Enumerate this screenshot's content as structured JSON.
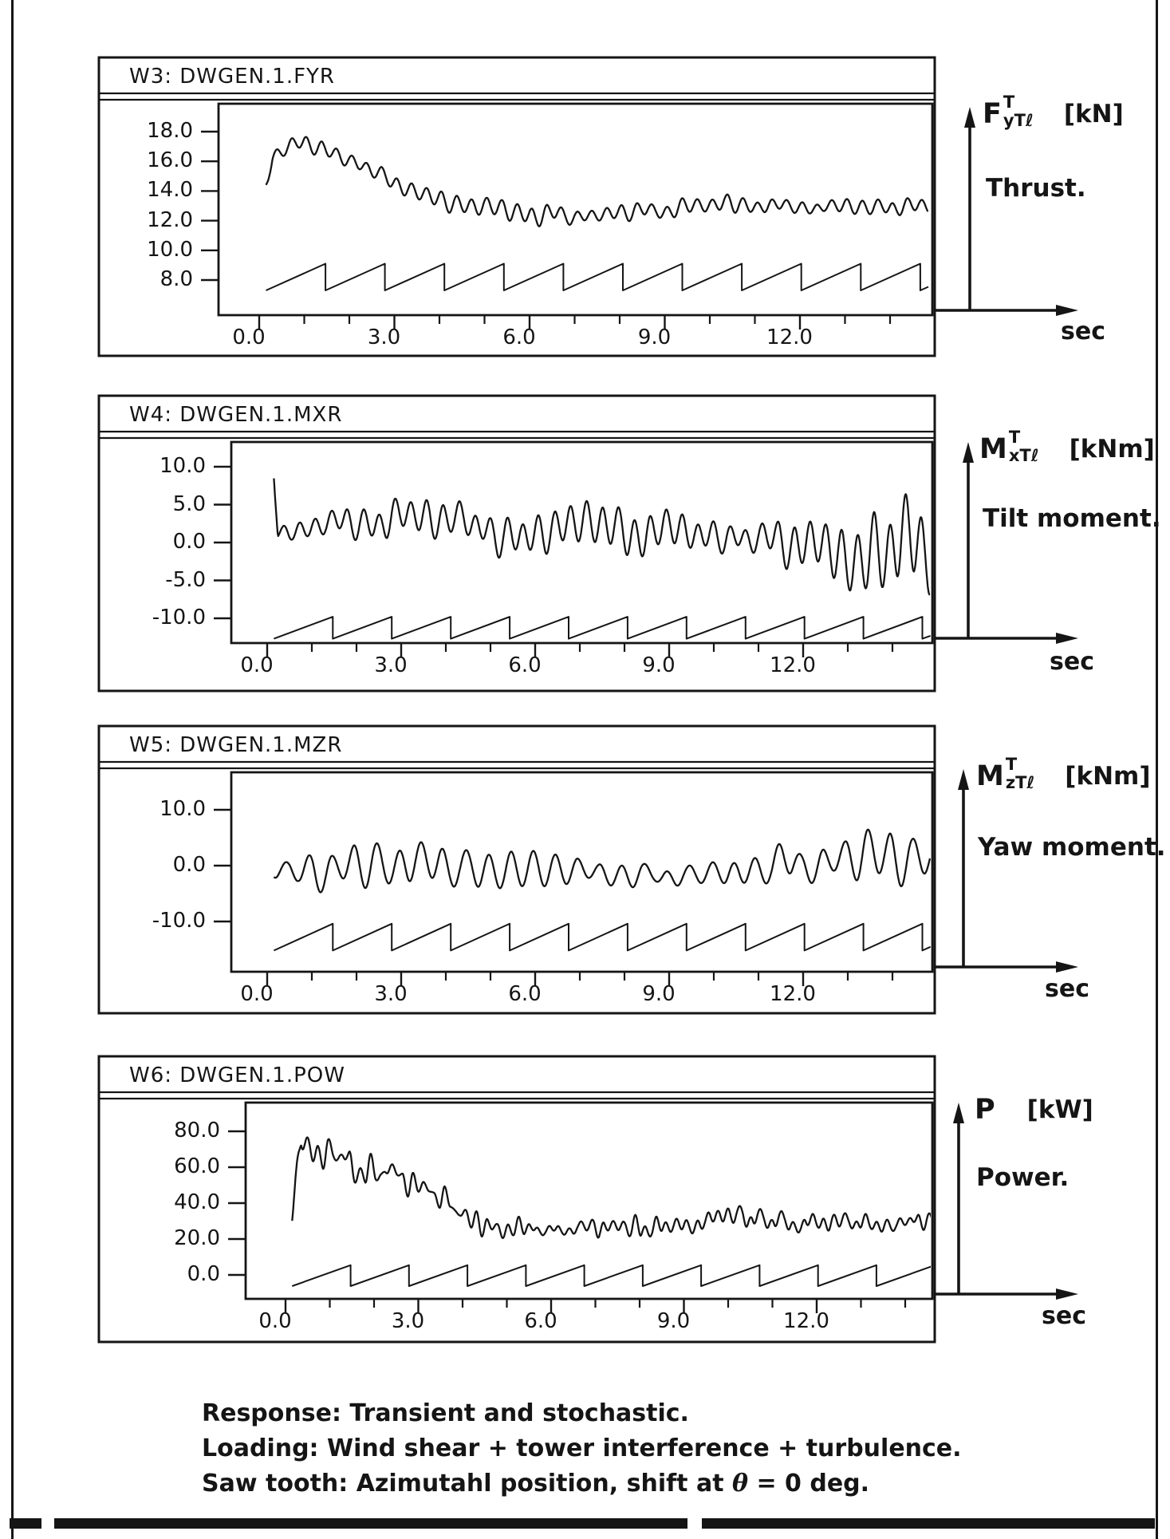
{
  "page": {
    "background": "#ffffff",
    "ink": "#151515"
  },
  "caption": {
    "line1": "Response: Transient and stochastic.",
    "line2": "Loading: Wind shear + tower interference + turbulence.",
    "line3_prefix": "Saw tooth: Azimutahl position, shift at ",
    "line3_theta": "θ",
    "line3_suffix": " = 0 deg."
  },
  "chart_data": [
    {
      "id": "W3",
      "type": "line",
      "title": "W3: DWGEN.1.FYR",
      "quantity": {
        "main": "F",
        "sup": "T",
        "sub": "yTℓ",
        "unit": "[kN]"
      },
      "description": "Thrust.",
      "x_axis": {
        "unit": "sec",
        "major_values": [
          0,
          3,
          6,
          9,
          12
        ],
        "major_labels": [
          "0.0",
          "3.0",
          "6.0",
          "9.0",
          "12.0"
        ],
        "minor_step": 1.0,
        "start": 0.0,
        "end": 14.85
      },
      "y_axis": {
        "values": [
          18,
          16,
          14,
          12,
          10,
          8
        ],
        "labels": [
          "18.0",
          "16.0",
          "14.0",
          "12.0",
          "10.0",
          "8.0"
        ]
      },
      "signal": {
        "name": "thrust-response",
        "t_start": 0.15,
        "freq_hz": 3.0,
        "sine_weight": 0.72,
        "noise_weight": 0.5,
        "noise_step": 0.2,
        "seed": 11,
        "phase": 0.6,
        "mean_keys": [
          [
            0.15,
            14.5
          ],
          [
            0.3,
            16.2
          ],
          [
            0.7,
            17.0
          ],
          [
            1.0,
            17.3
          ],
          [
            1.4,
            16.9
          ],
          [
            2.0,
            16.0
          ],
          [
            2.6,
            15.2
          ],
          [
            3.2,
            14.4
          ],
          [
            3.8,
            13.7
          ],
          [
            4.4,
            13.1
          ],
          [
            5.0,
            12.8
          ],
          [
            5.6,
            12.6
          ],
          [
            6.4,
            12.4
          ],
          [
            7.2,
            12.3
          ],
          [
            8.0,
            12.5
          ],
          [
            8.8,
            12.7
          ],
          [
            9.6,
            13.0
          ],
          [
            10.4,
            13.2
          ],
          [
            11.2,
            13.0
          ],
          [
            12.0,
            12.9
          ],
          [
            12.8,
            13.0
          ],
          [
            13.6,
            12.9
          ],
          [
            14.85,
            13.1
          ]
        ],
        "amp_keys": [
          [
            0.15,
            0.5
          ],
          [
            1.0,
            0.55
          ],
          [
            2.0,
            0.6
          ],
          [
            3.0,
            0.65
          ],
          [
            4.5,
            0.7
          ],
          [
            6.0,
            0.75
          ],
          [
            7.5,
            0.55
          ],
          [
            9.0,
            0.55
          ],
          [
            10.5,
            0.6
          ],
          [
            12.0,
            0.5
          ],
          [
            13.5,
            0.55
          ],
          [
            14.85,
            0.6
          ]
        ]
      },
      "sawtooth": {
        "name": "azimuthal-position",
        "t_start": 0.15,
        "period": 1.32,
        "min": 7.3,
        "max": 9.1
      }
    },
    {
      "id": "W4",
      "type": "line",
      "title": "W4: DWGEN.1.MXR",
      "quantity": {
        "main": "M",
        "sup": "T",
        "sub": "xTℓ",
        "unit": "[kNm]"
      },
      "description": "Tilt moment.",
      "x_axis": {
        "unit": "sec",
        "major_values": [
          0,
          3,
          6,
          9,
          12
        ],
        "major_labels": [
          "0.0",
          "3.0",
          "6.0",
          "9.0",
          "12.0"
        ],
        "minor_step": 1.0,
        "start": 0.0,
        "end": 14.85
      },
      "y_axis": {
        "values": [
          10,
          5,
          0,
          -5,
          -10
        ],
        "labels": [
          "10.0",
          "5.0",
          "0.0",
          "-5.0",
          "-10.0"
        ]
      },
      "signal": {
        "name": "tilt-moment-response",
        "t_start": 0.15,
        "freq_hz": 2.8,
        "sine_weight": 0.8,
        "noise_weight": 0.5,
        "noise_step": 0.22,
        "seed": 23,
        "phase": 1.4,
        "mean_keys": [
          [
            0.15,
            9.3
          ],
          [
            0.24,
            1.6
          ],
          [
            0.5,
            1.2
          ],
          [
            0.9,
            2.3
          ],
          [
            1.6,
            2.5
          ],
          [
            2.4,
            2.7
          ],
          [
            3.2,
            3.3
          ],
          [
            3.8,
            3.4
          ],
          [
            4.4,
            2.6
          ],
          [
            5.0,
            1.4
          ],
          [
            5.6,
            0.9
          ],
          [
            6.4,
            1.3
          ],
          [
            7.2,
            1.6
          ],
          [
            8.0,
            1.3
          ],
          [
            8.8,
            1.0
          ],
          [
            9.6,
            0.9
          ],
          [
            10.4,
            0.7
          ],
          [
            11.2,
            0.2
          ],
          [
            12.0,
            -0.3
          ],
          [
            13.0,
            -0.5
          ],
          [
            14.0,
            -0.6
          ],
          [
            14.85,
            -0.5
          ]
        ],
        "amp_keys": [
          [
            0.15,
            0.8
          ],
          [
            0.9,
            1.5
          ],
          [
            1.8,
            1.7
          ],
          [
            2.6,
            2.0
          ],
          [
            3.4,
            2.4
          ],
          [
            4.2,
            2.3
          ],
          [
            5.0,
            2.9
          ],
          [
            5.8,
            3.2
          ],
          [
            6.6,
            3.1
          ],
          [
            7.4,
            3.3
          ],
          [
            8.2,
            3.2
          ],
          [
            9.0,
            2.7
          ],
          [
            9.8,
            2.3
          ],
          [
            10.6,
            1.9
          ],
          [
            11.2,
            2.2
          ],
          [
            11.8,
            3.0
          ],
          [
            12.4,
            4.0
          ],
          [
            13.0,
            4.6
          ],
          [
            13.6,
            5.2
          ],
          [
            14.2,
            5.6
          ],
          [
            14.85,
            5.7
          ]
        ]
      },
      "sawtooth": {
        "name": "azimuthal-position",
        "t_start": 0.15,
        "period": 1.32,
        "min": -12.7,
        "max": -9.8
      }
    },
    {
      "id": "W5",
      "type": "line",
      "title": "W5: DWGEN.1.MZR",
      "quantity": {
        "main": "M",
        "sup": "T",
        "sub": "zTℓ",
        "unit": "[kNm]"
      },
      "description": "Yaw moment.",
      "x_axis": {
        "unit": "sec",
        "major_values": [
          0,
          3,
          6,
          9,
          12
        ],
        "major_labels": [
          "0.0",
          "3.0",
          "6.0",
          "9.0",
          "12.0"
        ],
        "minor_step": 1.0,
        "start": 0.0,
        "end": 14.85
      },
      "y_axis": {
        "values": [
          10,
          0,
          -10
        ],
        "labels": [
          "10.0",
          "0.0",
          "-10.0"
        ]
      },
      "signal": {
        "name": "yaw-moment-response",
        "t_start": 0.15,
        "freq_hz": 2.0,
        "sine_weight": 0.82,
        "noise_weight": 0.45,
        "noise_step": 0.24,
        "seed": 37,
        "phase": 2.2,
        "mean_keys": [
          [
            0.15,
            -1.2
          ],
          [
            0.7,
            -0.4
          ],
          [
            1.1,
            -1.0
          ],
          [
            1.8,
            -0.5
          ],
          [
            2.6,
            -0.2
          ],
          [
            3.4,
            -0.5
          ],
          [
            4.2,
            -0.6
          ],
          [
            5.0,
            -0.4
          ],
          [
            6.0,
            -0.6
          ],
          [
            7.0,
            -1.1
          ],
          [
            8.0,
            -1.7
          ],
          [
            9.0,
            -1.9
          ],
          [
            9.8,
            -1.5
          ],
          [
            10.6,
            -0.8
          ],
          [
            11.4,
            -0.1
          ],
          [
            12.2,
            0.4
          ],
          [
            13.0,
            1.1
          ],
          [
            13.8,
            1.7
          ],
          [
            14.4,
            1.0
          ],
          [
            14.85,
            0.2
          ]
        ],
        "amp_keys": [
          [
            0.15,
            2.4
          ],
          [
            0.7,
            3.8
          ],
          [
            1.1,
            5.4
          ],
          [
            1.7,
            4.2
          ],
          [
            2.4,
            4.6
          ],
          [
            3.0,
            4.4
          ],
          [
            3.8,
            3.6
          ],
          [
            4.6,
            3.3
          ],
          [
            5.4,
            3.4
          ],
          [
            6.2,
            3.1
          ],
          [
            7.0,
            2.6
          ],
          [
            7.8,
            2.1
          ],
          [
            8.6,
            1.7
          ],
          [
            9.4,
            1.8
          ],
          [
            10.2,
            2.3
          ],
          [
            11.0,
            3.1
          ],
          [
            11.8,
            3.4
          ],
          [
            12.6,
            3.5
          ],
          [
            13.4,
            4.6
          ],
          [
            14.0,
            5.3
          ],
          [
            14.5,
            4.6
          ],
          [
            14.85,
            4.0
          ]
        ]
      },
      "sawtooth": {
        "name": "azimuthal-position",
        "t_start": 0.15,
        "period": 1.32,
        "min": -15.2,
        "max": -10.4
      }
    },
    {
      "id": "W6",
      "type": "line",
      "title": "W6: DWGEN.1.POW",
      "quantity": {
        "main": "P",
        "sup": "",
        "sub": "",
        "unit": "[kW]"
      },
      "description": "Power.",
      "x_axis": {
        "unit": "sec",
        "major_values": [
          0,
          3,
          6,
          9,
          12
        ],
        "major_labels": [
          "0.0",
          "3.0",
          "6.0",
          "9.0",
          "12.0"
        ],
        "minor_step": 1.0,
        "start": 0.0,
        "end": 14.6
      },
      "y_axis": {
        "values": [
          80,
          60,
          40,
          20,
          0
        ],
        "labels": [
          "80.0",
          "60.0",
          "40.0",
          "20.0",
          "0.0"
        ]
      },
      "signal": {
        "name": "power-response",
        "t_start": 0.15,
        "freq_hz": 4.2,
        "sine_weight": 0.55,
        "noise_weight": 0.8,
        "noise_step": 0.12,
        "seed": 51,
        "phase": 0.9,
        "mean_keys": [
          [
            0.15,
            37
          ],
          [
            0.35,
            80
          ],
          [
            0.75,
            67
          ],
          [
            1.1,
            64
          ],
          [
            1.5,
            62
          ],
          [
            2.0,
            58
          ],
          [
            2.5,
            55
          ],
          [
            3.0,
            50
          ],
          [
            3.4,
            45
          ],
          [
            3.8,
            37
          ],
          [
            4.2,
            30
          ],
          [
            4.6,
            27
          ],
          [
            5.2,
            26
          ],
          [
            5.8,
            24
          ],
          [
            6.4,
            25
          ],
          [
            7.0,
            26
          ],
          [
            7.8,
            28
          ],
          [
            8.6,
            29
          ],
          [
            9.4,
            31
          ],
          [
            10.2,
            32
          ],
          [
            11.0,
            30
          ],
          [
            11.8,
            29
          ],
          [
            12.6,
            30
          ],
          [
            13.4,
            28
          ],
          [
            14.2,
            29
          ],
          [
            14.6,
            30
          ]
        ],
        "amp_keys": [
          [
            0.15,
            6
          ],
          [
            0.6,
            9
          ],
          [
            1.2,
            8.5
          ],
          [
            2.0,
            8
          ],
          [
            2.8,
            8
          ],
          [
            3.4,
            7
          ],
          [
            4.0,
            6
          ],
          [
            5.0,
            6
          ],
          [
            6.0,
            5.5
          ],
          [
            7.0,
            5
          ],
          [
            8.0,
            5.5
          ],
          [
            9.0,
            6
          ],
          [
            10.0,
            6
          ],
          [
            11.0,
            5
          ],
          [
            12.0,
            5
          ],
          [
            13.0,
            5
          ],
          [
            14.0,
            4.5
          ],
          [
            14.6,
            4.5
          ]
        ]
      },
      "sawtooth": {
        "name": "azimuthal-position",
        "t_start": 0.15,
        "period": 1.32,
        "min": -6.2,
        "max": 5.4
      }
    }
  ]
}
